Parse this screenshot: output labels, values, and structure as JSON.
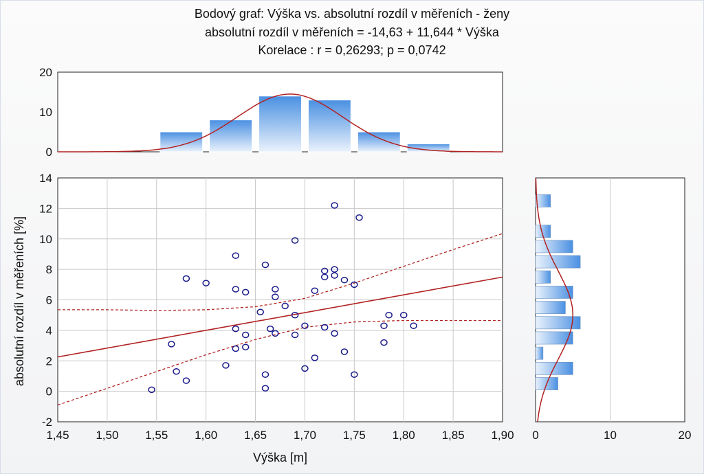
{
  "chart_data": {
    "type": "scatter",
    "title_lines": [
      "Bodový graf: Výška vs. absolutní rozdíl v měřeních - ženy",
      "absolutní rozdíl v měřeních = -14,63 + 11,644 * Výška",
      "Korelace :   r = 0,26293; p = 0,0742"
    ],
    "xlabel": "Výška [m]",
    "ylabel": "absolutní rozdíl v měřeních [%]",
    "xlim": [
      1.45,
      1.9
    ],
    "ylim": [
      -2,
      14
    ],
    "x_ticks": [
      "1,45",
      "1,50",
      "1,55",
      "1,60",
      "1,65",
      "1,70",
      "1,75",
      "1,80",
      "1,85",
      "1,90"
    ],
    "y_ticks": [
      "-2",
      "0",
      "2",
      "4",
      "6",
      "8",
      "10",
      "12",
      "14"
    ],
    "grid": true,
    "regression": {
      "intercept": -14.63,
      "slope": 11.644
    },
    "confidence_band": {
      "upper": [
        [
          1.45,
          5.35
        ],
        [
          1.5,
          5.35
        ],
        [
          1.55,
          5.3
        ],
        [
          1.6,
          5.35
        ],
        [
          1.65,
          5.55
        ],
        [
          1.7,
          6.1
        ],
        [
          1.75,
          7.1
        ],
        [
          1.8,
          8.2
        ],
        [
          1.85,
          9.3
        ],
        [
          1.9,
          10.35
        ]
      ],
      "lower": [
        [
          1.45,
          -0.9
        ],
        [
          1.5,
          0.2
        ],
        [
          1.55,
          1.3
        ],
        [
          1.6,
          2.4
        ],
        [
          1.65,
          3.4
        ],
        [
          1.7,
          4.2
        ],
        [
          1.75,
          4.55
        ],
        [
          1.8,
          4.65
        ],
        [
          1.85,
          4.65
        ],
        [
          1.9,
          4.65
        ]
      ]
    },
    "points": [
      [
        1.545,
        0.1
      ],
      [
        1.565,
        3.1
      ],
      [
        1.57,
        1.3
      ],
      [
        1.58,
        0.7
      ],
      [
        1.58,
        7.4
      ],
      [
        1.6,
        7.1
      ],
      [
        1.62,
        1.7
      ],
      [
        1.63,
        8.9
      ],
      [
        1.63,
        6.7
      ],
      [
        1.63,
        4.1
      ],
      [
        1.63,
        2.8
      ],
      [
        1.64,
        6.5
      ],
      [
        1.64,
        3.7
      ],
      [
        1.64,
        2.9
      ],
      [
        1.655,
        5.2
      ],
      [
        1.66,
        8.3
      ],
      [
        1.66,
        1.1
      ],
      [
        1.66,
        0.2
      ],
      [
        1.665,
        4.1
      ],
      [
        1.67,
        6.7
      ],
      [
        1.67,
        6.2
      ],
      [
        1.67,
        3.8
      ],
      [
        1.68,
        5.6
      ],
      [
        1.69,
        9.9
      ],
      [
        1.69,
        5.0
      ],
      [
        1.69,
        3.7
      ],
      [
        1.7,
        4.3
      ],
      [
        1.7,
        1.5
      ],
      [
        1.71,
        6.6
      ],
      [
        1.71,
        2.2
      ],
      [
        1.72,
        7.9
      ],
      [
        1.72,
        7.5
      ],
      [
        1.72,
        4.2
      ],
      [
        1.73,
        12.2
      ],
      [
        1.73,
        8.0
      ],
      [
        1.73,
        7.6
      ],
      [
        1.73,
        3.8
      ],
      [
        1.74,
        7.3
      ],
      [
        1.74,
        2.6
      ],
      [
        1.75,
        7.0
      ],
      [
        1.75,
        1.1
      ],
      [
        1.755,
        11.4
      ],
      [
        1.78,
        4.3
      ],
      [
        1.78,
        3.2
      ],
      [
        1.785,
        5.0
      ],
      [
        1.8,
        5.0
      ],
      [
        1.81,
        4.3
      ]
    ],
    "x_histogram": {
      "ylim": [
        0,
        20
      ],
      "y_ticks": [
        "0",
        "10",
        "20"
      ],
      "bins": [
        {
          "from": 1.45,
          "to": 1.5,
          "count": 0
        },
        {
          "from": 1.5,
          "to": 1.55,
          "count": 0
        },
        {
          "from": 1.55,
          "to": 1.6,
          "count": 5
        },
        {
          "from": 1.6,
          "to": 1.65,
          "count": 8
        },
        {
          "from": 1.65,
          "to": 1.7,
          "count": 14
        },
        {
          "from": 1.7,
          "to": 1.75,
          "count": 13
        },
        {
          "from": 1.75,
          "to": 1.8,
          "count": 5
        },
        {
          "from": 1.8,
          "to": 1.85,
          "count": 2
        },
        {
          "from": 1.85,
          "to": 1.9,
          "count": 0
        }
      ],
      "normal_fit": {
        "mean": 1.685,
        "sd": 0.053,
        "peak": 14.5
      }
    },
    "y_histogram": {
      "xlim": [
        0,
        20
      ],
      "x_ticks": [
        "0",
        "10",
        "20"
      ],
      "bins": [
        {
          "from": -2,
          "to": -1,
          "count": 0
        },
        {
          "from": -1,
          "to": 0,
          "count": 0
        },
        {
          "from": 0,
          "to": 1,
          "count": 3
        },
        {
          "from": 1,
          "to": 2,
          "count": 5
        },
        {
          "from": 2,
          "to": 3,
          "count": 1
        },
        {
          "from": 3,
          "to": 4,
          "count": 5
        },
        {
          "from": 4,
          "to": 5,
          "count": 6
        },
        {
          "from": 5,
          "to": 6,
          "count": 4
        },
        {
          "from": 6,
          "to": 7,
          "count": 5
        },
        {
          "from": 7,
          "to": 8,
          "count": 2
        },
        {
          "from": 8,
          "to": 9,
          "count": 6
        },
        {
          "from": 9,
          "to": 10,
          "count": 5
        },
        {
          "from": 10,
          "to": 11,
          "count": 2
        },
        {
          "from": 11,
          "to": 12,
          "count": 0
        },
        {
          "from": 12,
          "to": 13,
          "count": 2
        },
        {
          "from": 13,
          "to": 14,
          "count": 0
        }
      ],
      "normal_fit": {
        "mean": 5.0,
        "sd": 2.9,
        "peak": 5.0
      }
    },
    "colors": {
      "points": "#1a1a8c",
      "line": "#b22222",
      "bar_top": "#4a90e2",
      "bar_bottom": "#e8f1fb",
      "grid": "#c8c8c8"
    }
  }
}
